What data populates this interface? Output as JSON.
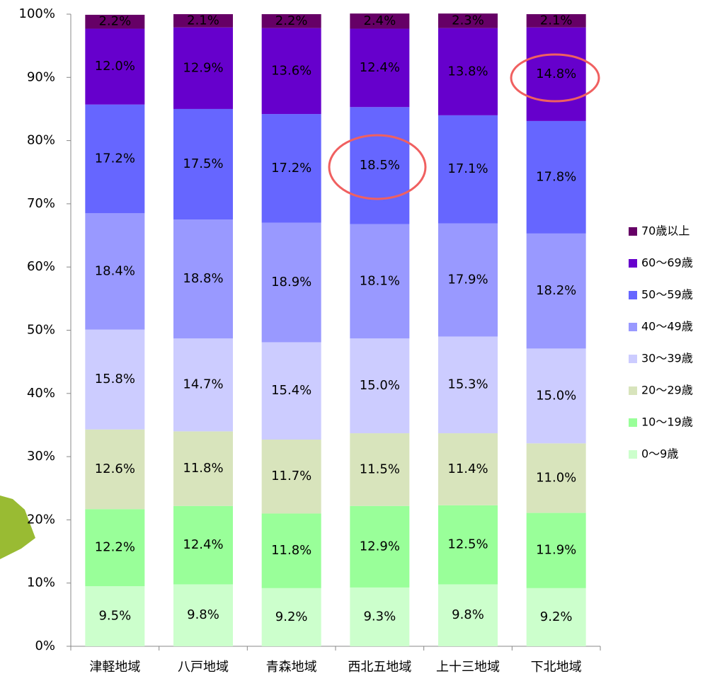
{
  "chart_data": {
    "type": "stacked_bar",
    "categories": [
      "津軽地域",
      "八戸地域",
      "青森地域",
      "西北五地域",
      "上十三地域",
      "下北地域"
    ],
    "series": [
      {
        "name": "0〜9歳",
        "color": "#ccffcc",
        "values": [
          9.5,
          9.8,
          9.2,
          9.3,
          9.8,
          9.2
        ],
        "value_labels": [
          "9.5%",
          "9.8%",
          "9.2%",
          "9.3%",
          "9.8%",
          "9.2%"
        ]
      },
      {
        "name": "10〜19歳",
        "color": "#99ff99",
        "values": [
          12.2,
          12.4,
          11.8,
          12.9,
          12.5,
          11.9
        ],
        "value_labels": [
          "12.2%",
          "12.4%",
          "11.8%",
          "12.9%",
          "12.5%",
          "11.9%"
        ]
      },
      {
        "name": "20〜29歳",
        "color": "#d8e4bc",
        "values": [
          12.6,
          11.8,
          11.7,
          11.5,
          11.4,
          11.0
        ],
        "value_labels": [
          "12.6%",
          "11.8%",
          "11.7%",
          "11.5%",
          "11.4%",
          "11.0%"
        ]
      },
      {
        "name": "30〜39歳",
        "color": "#ccccff",
        "values": [
          15.8,
          14.7,
          15.4,
          15.0,
          15.3,
          15.0
        ],
        "value_labels": [
          "15.8%",
          "14.7%",
          "15.4%",
          "15.0%",
          "15.3%",
          "15.0%"
        ]
      },
      {
        "name": "40〜49歳",
        "color": "#9999ff",
        "values": [
          18.4,
          18.8,
          18.9,
          18.1,
          17.9,
          18.2
        ],
        "value_labels": [
          "18.4%",
          "18.8%",
          "18.9%",
          "18.1%",
          "17.9%",
          "18.2%"
        ]
      },
      {
        "name": "50〜59歳",
        "color": "#6666ff",
        "values": [
          17.2,
          17.5,
          17.2,
          18.5,
          17.1,
          17.8
        ],
        "value_labels": [
          "17.2%",
          "17.5%",
          "17.2%",
          "18.5%",
          "17.1%",
          "17.8%"
        ]
      },
      {
        "name": "60〜69歳",
        "color": "#6600cc",
        "values": [
          12.0,
          12.9,
          13.6,
          12.4,
          13.8,
          14.8
        ],
        "value_labels": [
          "12.0%",
          "12.9%",
          "13.6%",
          "12.4%",
          "13.8%",
          "14.8%"
        ]
      },
      {
        "name": "70歳以上",
        "color": "#660066",
        "values": [
          2.2,
          2.1,
          2.2,
          2.4,
          2.3,
          2.1
        ],
        "value_labels": [
          "2.2%",
          "2.1%",
          "2.2%",
          "2.4%",
          "2.3%",
          "2.1%"
        ]
      }
    ],
    "ylim": [
      0,
      100
    ],
    "yticks": [
      {
        "value": 0,
        "label": "0%"
      },
      {
        "value": 10,
        "label": "10%"
      },
      {
        "value": 20,
        "label": "20%"
      },
      {
        "value": 30,
        "label": "30%"
      },
      {
        "value": 40,
        "label": "40%"
      },
      {
        "value": 50,
        "label": "50%"
      },
      {
        "value": 60,
        "label": "60%"
      },
      {
        "value": 70,
        "label": "70%"
      },
      {
        "value": 80,
        "label": "80%"
      },
      {
        "value": 90,
        "label": "90%"
      },
      {
        "value": 100,
        "label": "100%"
      }
    ],
    "legend": "right"
  }
}
